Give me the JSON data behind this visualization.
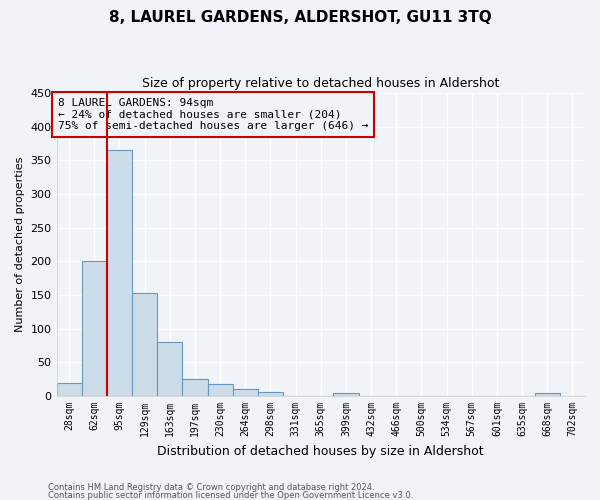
{
  "title": "8, LAUREL GARDENS, ALDERSHOT, GU11 3TQ",
  "subtitle": "Size of property relative to detached houses in Aldershot",
  "xlabel": "Distribution of detached houses by size in Aldershot",
  "ylabel": "Number of detached properties",
  "footnote1": "Contains HM Land Registry data © Crown copyright and database right 2024.",
  "footnote2": "Contains public sector information licensed under the Open Government Licence v3.0.",
  "bin_labels": [
    "28sqm",
    "62sqm",
    "95sqm",
    "129sqm",
    "163sqm",
    "197sqm",
    "230sqm",
    "264sqm",
    "298sqm",
    "331sqm",
    "365sqm",
    "399sqm",
    "432sqm",
    "466sqm",
    "500sqm",
    "534sqm",
    "567sqm",
    "601sqm",
    "635sqm",
    "668sqm",
    "702sqm"
  ],
  "bar_heights": [
    20,
    200,
    365,
    153,
    80,
    25,
    18,
    10,
    6,
    0,
    0,
    4,
    0,
    0,
    0,
    0,
    0,
    0,
    0,
    4,
    0
  ],
  "bar_color": "#ccdce8",
  "bar_edge_color": "#6699bb",
  "ylim": [
    0,
    450
  ],
  "yticks": [
    0,
    50,
    100,
    150,
    200,
    250,
    300,
    350,
    400,
    450
  ],
  "vline_x": 1.5,
  "annotation_text_line1": "8 LAUREL GARDENS: 94sqm",
  "annotation_text_line2": "← 24% of detached houses are smaller (204)",
  "annotation_text_line3": "75% of semi-detached houses are larger (646) →",
  "vline_color": "#cc0000",
  "box_edge_color": "#cc0000",
  "background_color": "#f0f4f8",
  "grid_color": "#ffffff",
  "title_fontsize": 11,
  "subtitle_fontsize": 9
}
